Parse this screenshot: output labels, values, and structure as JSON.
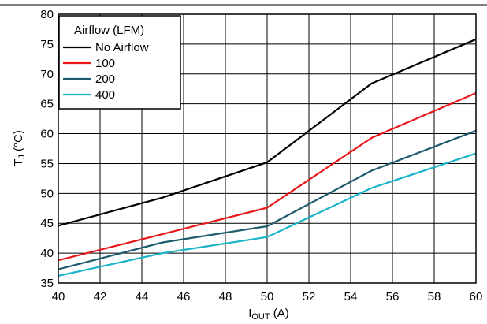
{
  "chart_data": {
    "type": "line",
    "xlabel": "I",
    "xlabel_sub": "OUT",
    "xlabel_unit": " (A)",
    "ylabel": "T",
    "ylabel_sub": "J",
    "ylabel_unit": " (°C)",
    "xlim": [
      40,
      60
    ],
    "ylim": [
      35,
      80
    ],
    "xticks": [
      40,
      42,
      44,
      46,
      48,
      50,
      52,
      54,
      56,
      58,
      60
    ],
    "yticks": [
      35,
      40,
      45,
      50,
      55,
      60,
      65,
      70,
      75,
      80
    ],
    "grid": true,
    "legend": {
      "title": "Airflow (LFM)",
      "placement": "top-left"
    },
    "series": [
      {
        "name": "No Airflow",
        "color": "#000000",
        "x": [
          40,
          45,
          50,
          55,
          60
        ],
        "y": [
          44.6,
          49.3,
          55.2,
          68.4,
          75.8
        ]
      },
      {
        "name": "100",
        "color": "#e8191b",
        "x": [
          40,
          45,
          50,
          55,
          60
        ],
        "y": [
          38.8,
          43.2,
          47.6,
          59.3,
          66.8
        ]
      },
      {
        "name": "200",
        "color": "#1f5b6e",
        "x": [
          40,
          45,
          50,
          55,
          60
        ],
        "y": [
          37.3,
          41.8,
          44.5,
          53.8,
          60.5
        ]
      },
      {
        "name": "400",
        "color": "#1ab4c8",
        "x": [
          40,
          45,
          50,
          55,
          60
        ],
        "y": [
          36.2,
          40.0,
          42.7,
          50.9,
          56.7
        ]
      }
    ]
  }
}
